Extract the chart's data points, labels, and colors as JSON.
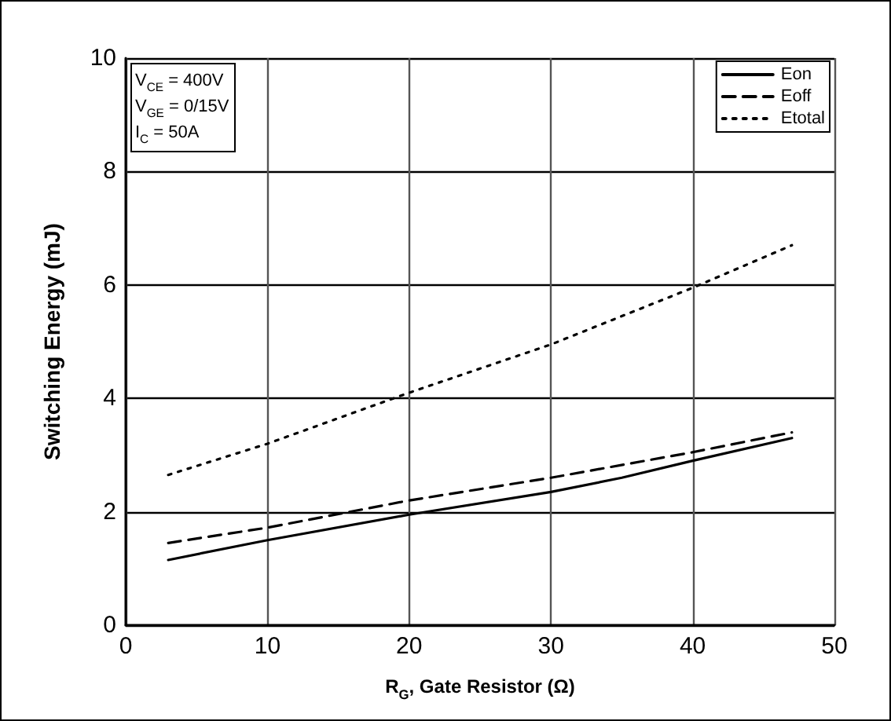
{
  "chart_data": {
    "type": "line",
    "xlabel": "R$_{G}$, Gate Resistor (Ω)",
    "ylabel": "Switching Energy (mJ)",
    "xlim": [
      0,
      50
    ],
    "xticks": [
      0,
      10,
      20,
      30,
      40,
      50
    ],
    "ylim": [
      0,
      10
    ],
    "yticks": [
      0,
      2,
      4,
      6,
      8,
      10
    ],
    "grid": true,
    "legend": "top right",
    "marker": "none",
    "annotations": [
      "V$_{CE}$ = 400V",
      "V$_{GE}$ = 0/15V",
      "I$_{C}$ = 50A"
    ],
    "series": [
      {
        "name": "Eon",
        "color": "#000000",
        "line_style": "solid",
        "x": [
          3,
          10,
          20,
          30,
          35,
          40,
          47
        ],
        "values": [
          1.15,
          1.5,
          1.95,
          2.35,
          2.6,
          2.9,
          3.3
        ]
      },
      {
        "name": "Eoff",
        "color": "#000000",
        "line_style": "dashed",
        "x": [
          3,
          10,
          20,
          30,
          40,
          47
        ],
        "values": [
          1.45,
          1.72,
          2.2,
          2.6,
          3.05,
          3.4
        ]
      },
      {
        "name": "Etotal",
        "color": "#000000",
        "line_style": "dotted",
        "x": [
          3,
          10,
          20,
          30,
          40,
          47
        ],
        "values": [
          2.65,
          3.2,
          4.1,
          4.95,
          5.95,
          6.7
        ]
      }
    ]
  }
}
